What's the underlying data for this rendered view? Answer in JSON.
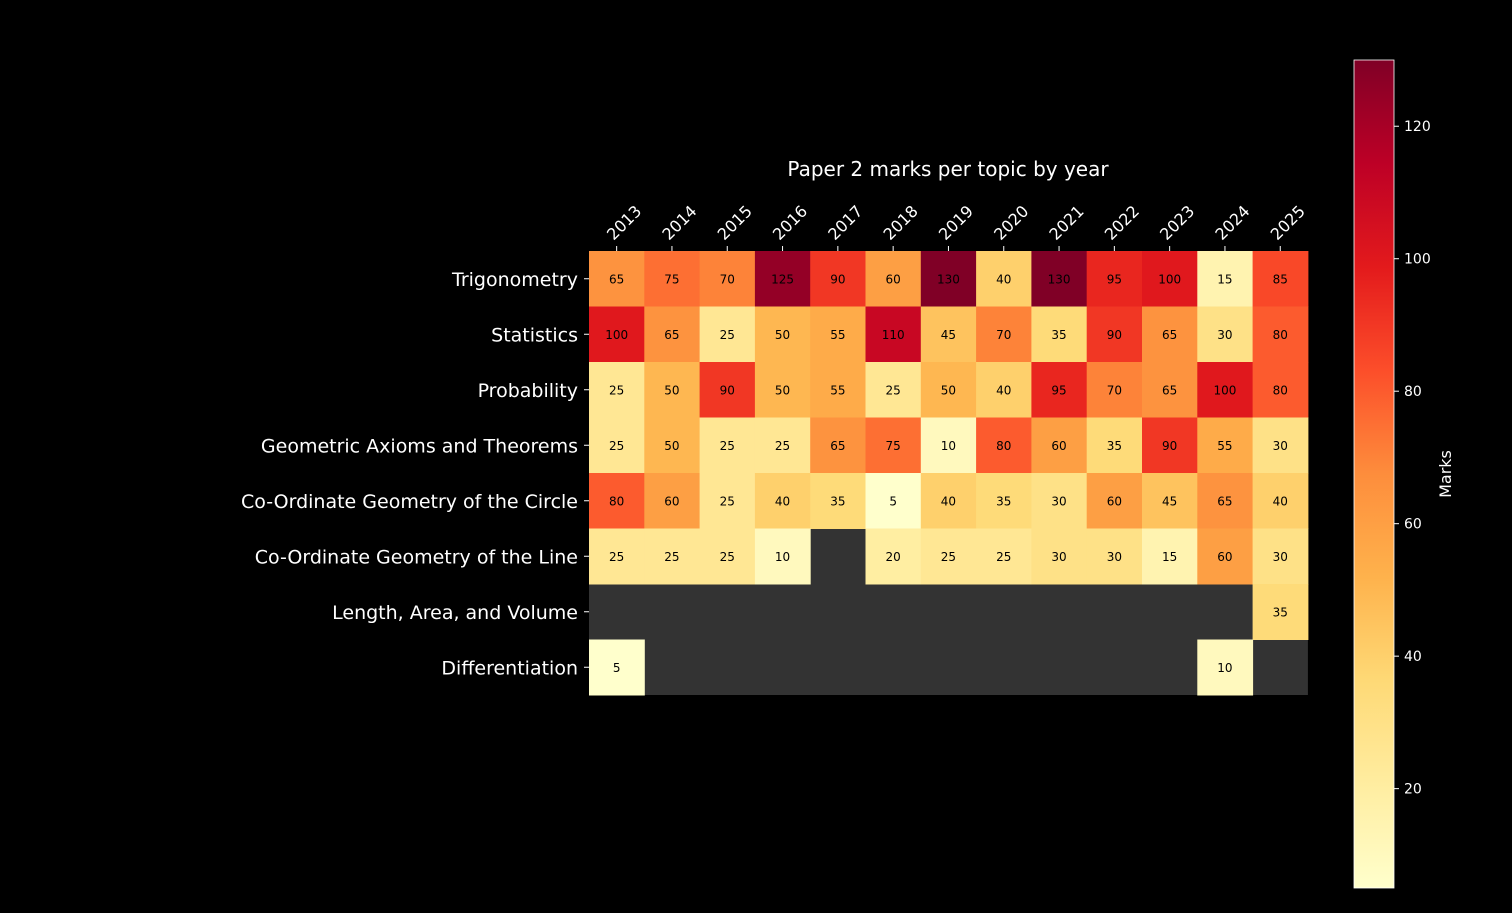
{
  "colors": {
    "background": "#000000",
    "text": "#ffffff",
    "missing": "#333333",
    "cell_text": "#000000",
    "colormap": "YlOrRd"
  },
  "chart_data": {
    "type": "heatmap",
    "title": "Paper 2 marks per topic by year",
    "x_categories": [
      "2013",
      "2014",
      "2015",
      "2016",
      "2017",
      "2018",
      "2019",
      "2020",
      "2021",
      "2022",
      "2023",
      "2024",
      "2025"
    ],
    "y_categories": [
      "Trigonometry",
      "Statistics",
      "Probability",
      "Geometric Axioms and Theorems",
      "Co-Ordinate Geometry of the Circle",
      "Co-Ordinate Geometry of the Line",
      "Length, Area, and Volume",
      "Differentiation"
    ],
    "values": [
      [
        65,
        75,
        70,
        125,
        90,
        60,
        130,
        40,
        130,
        95,
        100,
        15,
        85
      ],
      [
        100,
        65,
        25,
        50,
        55,
        110,
        45,
        70,
        35,
        90,
        65,
        30,
        80
      ],
      [
        25,
        50,
        90,
        50,
        55,
        25,
        50,
        40,
        95,
        70,
        65,
        100,
        80
      ],
      [
        25,
        50,
        25,
        25,
        65,
        75,
        10,
        80,
        60,
        35,
        90,
        55,
        30
      ],
      [
        80,
        60,
        25,
        40,
        35,
        5,
        40,
        35,
        30,
        60,
        45,
        65,
        40
      ],
      [
        25,
        25,
        25,
        10,
        null,
        20,
        25,
        25,
        30,
        30,
        15,
        60,
        30
      ],
      [
        null,
        null,
        null,
        null,
        null,
        null,
        null,
        null,
        null,
        null,
        null,
        null,
        35
      ],
      [
        5,
        null,
        null,
        null,
        null,
        null,
        null,
        null,
        null,
        null,
        null,
        10,
        null
      ]
    ],
    "colorbar": {
      "label": "Marks",
      "min": 5,
      "max": 130,
      "ticks": [
        20,
        40,
        60,
        80,
        100,
        120
      ]
    },
    "x_ticks_position": "top",
    "x_tick_rotation": 45,
    "grid": false,
    "legend": "colorbar-right"
  }
}
